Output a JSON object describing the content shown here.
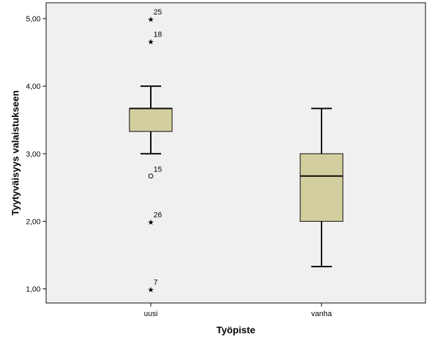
{
  "chart_data": {
    "type": "boxplot",
    "xlabel": "Työpiste",
    "ylabel": "Tyytyväisyys valaistukseen",
    "ylim": [
      0.8,
      5.25
    ],
    "yticks": [
      1,
      2,
      3,
      4,
      5
    ],
    "ytick_labels": [
      "1,00",
      "2,00",
      "3,00",
      "4,00",
      "5,00"
    ],
    "categories": [
      "uusi",
      "vanha"
    ],
    "boxes": [
      {
        "category": "uusi",
        "whisker_low": 3.0,
        "q1": 3.33,
        "median": 3.67,
        "q3": 3.67,
        "whisker_high": 4.0,
        "outliers": [
          {
            "value": 5.0,
            "label": "25",
            "kind": "extreme"
          },
          {
            "value": 4.67,
            "label": "18",
            "kind": "extreme"
          },
          {
            "value": 2.67,
            "label": "15",
            "kind": "outlier"
          },
          {
            "value": 2.0,
            "label": "26",
            "kind": "extreme"
          },
          {
            "value": 1.0,
            "label": "7",
            "kind": "extreme"
          }
        ]
      },
      {
        "category": "vanha",
        "whisker_low": 1.33,
        "q1": 2.0,
        "median": 2.67,
        "q3": 3.0,
        "whisker_high": 3.67,
        "outliers": []
      }
    ],
    "colors": {
      "plot_background": "#f0f0f0",
      "box_fill": "#d3ce9d",
      "line": "#000000"
    }
  }
}
